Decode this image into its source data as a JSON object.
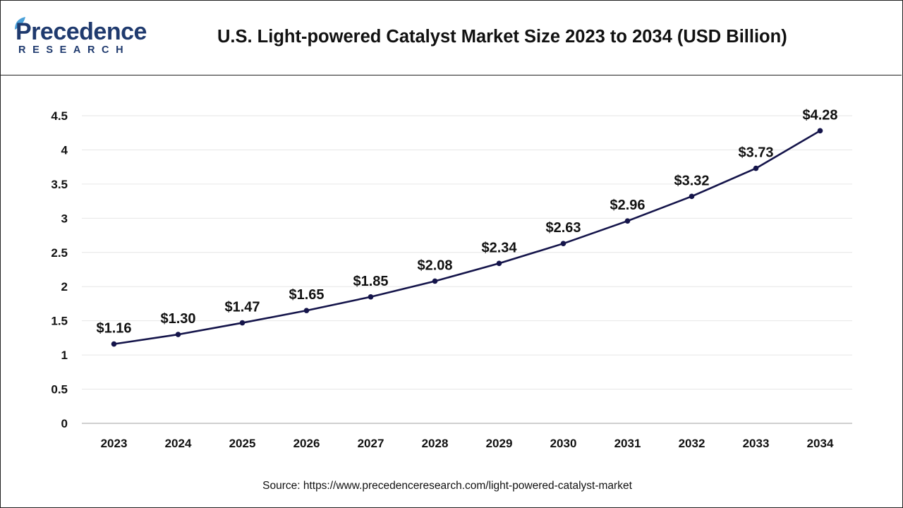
{
  "brand": {
    "name": "Precedence",
    "sub": "RESEARCH"
  },
  "chart_data": {
    "type": "line",
    "title": "U.S. Light-powered Catalyst Market Size 2023 to 2034 (USD Billion)",
    "categories": [
      "2023",
      "2024",
      "2025",
      "2026",
      "2027",
      "2028",
      "2029",
      "2030",
      "2031",
      "2032",
      "2033",
      "2034"
    ],
    "series": [
      {
        "values": [
          1.16,
          1.3,
          1.47,
          1.65,
          1.85,
          2.08,
          2.34,
          2.63,
          2.96,
          3.32,
          3.73,
          4.28
        ],
        "data_labels": [
          "$1.16",
          "$1.30",
          "$1.47",
          "$1.65",
          "$1.85",
          "$2.08",
          "$2.34",
          "$2.63",
          "$2.96",
          "$3.32",
          "$3.73",
          "$4.28"
        ]
      }
    ],
    "yticks": [
      "0",
      "0.5",
      "1",
      "1.5",
      "2",
      "2.5",
      "3",
      "3.5",
      "4",
      "4.5"
    ],
    "ylim": [
      0,
      4.5
    ],
    "xlabel": "",
    "ylabel": "",
    "grid": true,
    "colors": {
      "line": "#14144a",
      "grid": "#e6e6e6",
      "axis": "#bfbfbf",
      "text": "#111111"
    }
  },
  "source": "Source: https://www.precedenceresearch.com/light-powered-catalyst-market"
}
